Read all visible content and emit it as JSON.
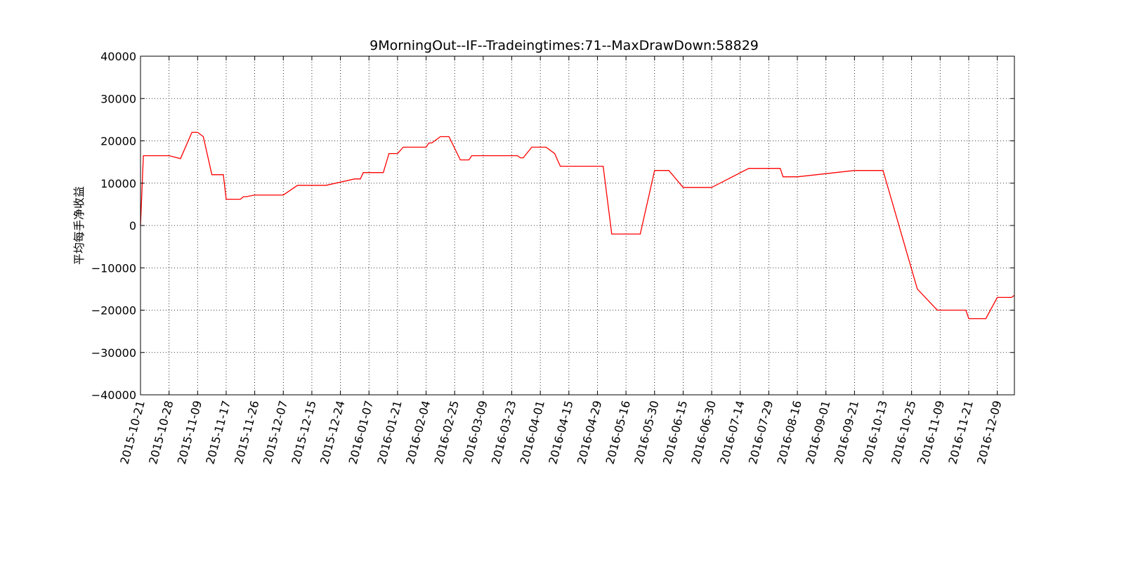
{
  "chart_data": {
    "type": "line",
    "title": "9MorningOut--IF--Tradeingtimes:71--MaxDrawDown:58829",
    "xlabel": "",
    "ylabel": "平均每手净收益",
    "ylim": [
      -40000,
      40000
    ],
    "yticks": [
      40000,
      30000,
      20000,
      10000,
      0,
      -10000,
      -20000,
      -30000,
      -40000
    ],
    "ytick_labels": [
      "40000",
      "30000",
      "20000",
      "10000",
      "0",
      "−10000",
      "−20000",
      "−30000",
      "−40000"
    ],
    "xtick_labels": [
      "2015-10-21",
      "2015-10-28",
      "2015-11-09",
      "2015-11-17",
      "2015-11-26",
      "2015-12-07",
      "2015-12-15",
      "2015-12-24",
      "2016-01-07",
      "2016-01-21",
      "2016-02-04",
      "2016-02-25",
      "2016-03-09",
      "2016-03-23",
      "2016-04-01",
      "2016-04-15",
      "2016-04-29",
      "2016-05-16",
      "2016-05-30",
      "2016-06-15",
      "2016-06-30",
      "2016-07-14",
      "2016-07-29",
      "2016-08-16",
      "2016-09-01",
      "2016-09-21",
      "2016-10-13",
      "2016-10-25",
      "2016-11-09",
      "2016-11-21",
      "2016-12-09"
    ],
    "x_index_range": [
      0,
      306
    ],
    "grid": true,
    "line_color": "#ff0000",
    "series": [
      {
        "x": [
          0,
          1,
          2,
          5,
          10,
          14,
          18,
          20,
          22,
          25,
          26,
          27,
          29,
          30,
          35,
          36,
          37,
          40,
          42,
          45,
          48,
          50,
          55,
          60,
          65,
          75,
          77,
          78,
          85,
          87,
          90,
          92,
          100,
          101,
          102,
          105,
          108,
          112,
          115,
          116,
          130,
          132,
          133,
          134,
          137,
          140,
          142,
          145,
          147,
          150,
          155,
          157,
          162,
          165,
          175,
          180,
          185,
          190,
          200,
          213,
          219,
          224,
          225,
          230,
          250,
          255,
          260,
          272,
          279,
          289,
          290,
          296,
          300,
          305,
          306
        ],
        "values": [
          0,
          16500,
          16500,
          16500,
          16500,
          15800,
          22000,
          22000,
          21000,
          12000,
          12000,
          12000,
          12000,
          6200,
          6200,
          6800,
          6800,
          7200,
          7200,
          7200,
          7200,
          7200,
          9500,
          9500,
          9500,
          11000,
          11000,
          12500,
          12500,
          17000,
          17000,
          18500,
          18500,
          19500,
          19500,
          21000,
          21000,
          15500,
          15500,
          16500,
          16500,
          16500,
          16000,
          16000,
          18500,
          18500,
          18500,
          17000,
          14000,
          14000,
          14000,
          14000,
          14000,
          -2000,
          -2000,
          13000,
          13000,
          9000,
          9000,
          13500,
          13500,
          13500,
          11500,
          11500,
          13000,
          13000,
          13000,
          -15000,
          -20000,
          -20000,
          -22000,
          -22000,
          -17000,
          -17000,
          -16500
        ]
      }
    ]
  }
}
